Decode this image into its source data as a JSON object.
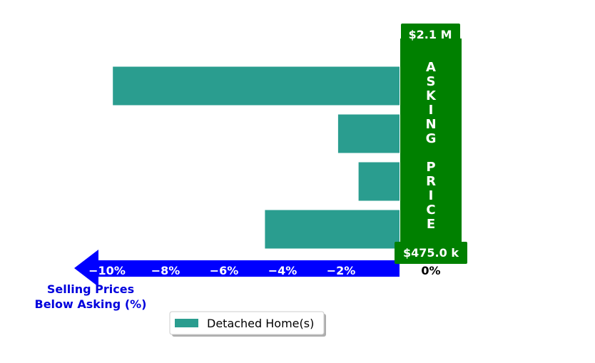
{
  "chart_data": {
    "type": "bar",
    "orientation": "horizontal",
    "title": "",
    "xlabel": "Selling Prices Below Asking (%)",
    "xlabel_lines": [
      "Selling Prices",
      "Below Asking (%)"
    ],
    "ylabel": "",
    "xlim": [
      -12,
      0
    ],
    "xticks": [
      -10,
      -8,
      -6,
      -4,
      -2
    ],
    "xtick_labels": [
      "−10%",
      "−8%",
      "−6%",
      "−4%",
      "−2%"
    ],
    "zero_label": "0%",
    "series": [
      {
        "name": "Detached Home(s)",
        "values": [
          -9.8,
          -2.1,
          -1.4,
          -4.6
        ]
      }
    ],
    "asking_price_banner": "ASKING PRICE",
    "asking_price_top": "$2.1 M",
    "asking_price_bottom": "$475.0 k",
    "legend": {
      "position": "bottom-center",
      "entries": [
        "Detached Home(s)"
      ]
    },
    "grid": false
  },
  "colors": {
    "bar": "#2a9d8f",
    "arrow": "#0000ff",
    "banner": "#008000",
    "caption": "#0000dd",
    "tick_text": "#ffffff",
    "zero_text": "#000000"
  }
}
